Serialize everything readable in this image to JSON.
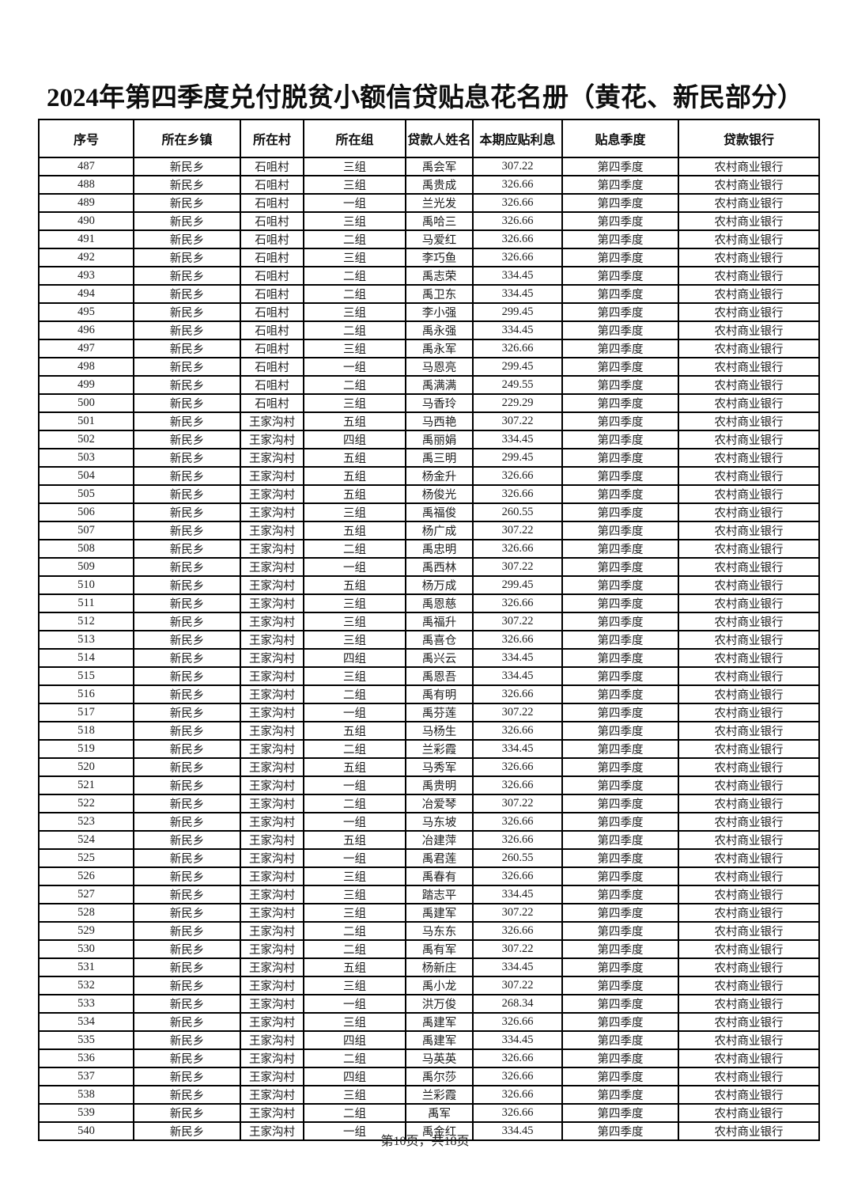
{
  "title": "2024年第四季度兑付脱贫小额信贷贴息花名册（黄花、新民部分）",
  "table": {
    "columns": [
      "序号",
      "所在乡镇",
      "所在村",
      "所在组",
      "贷款人姓名",
      "本期应贴利息",
      "贴息季度",
      "贷款银行"
    ],
    "rows": [
      [
        "487",
        "新民乡",
        "石咀村",
        "三组",
        "禹会军",
        "307.22",
        "第四季度",
        "农村商业银行"
      ],
      [
        "488",
        "新民乡",
        "石咀村",
        "三组",
        "禹贵成",
        "326.66",
        "第四季度",
        "农村商业银行"
      ],
      [
        "489",
        "新民乡",
        "石咀村",
        "一组",
        "兰光发",
        "326.66",
        "第四季度",
        "农村商业银行"
      ],
      [
        "490",
        "新民乡",
        "石咀村",
        "三组",
        "禹哈三",
        "326.66",
        "第四季度",
        "农村商业银行"
      ],
      [
        "491",
        "新民乡",
        "石咀村",
        "二组",
        "马爱红",
        "326.66",
        "第四季度",
        "农村商业银行"
      ],
      [
        "492",
        "新民乡",
        "石咀村",
        "三组",
        "李巧鱼",
        "326.66",
        "第四季度",
        "农村商业银行"
      ],
      [
        "493",
        "新民乡",
        "石咀村",
        "二组",
        "禹志荣",
        "334.45",
        "第四季度",
        "农村商业银行"
      ],
      [
        "494",
        "新民乡",
        "石咀村",
        "二组",
        "禹卫东",
        "334.45",
        "第四季度",
        "农村商业银行"
      ],
      [
        "495",
        "新民乡",
        "石咀村",
        "三组",
        "李小强",
        "299.45",
        "第四季度",
        "农村商业银行"
      ],
      [
        "496",
        "新民乡",
        "石咀村",
        "二组",
        "禹永强",
        "334.45",
        "第四季度",
        "农村商业银行"
      ],
      [
        "497",
        "新民乡",
        "石咀村",
        "三组",
        "禹永军",
        "326.66",
        "第四季度",
        "农村商业银行"
      ],
      [
        "498",
        "新民乡",
        "石咀村",
        "一组",
        "马恩亮",
        "299.45",
        "第四季度",
        "农村商业银行"
      ],
      [
        "499",
        "新民乡",
        "石咀村",
        "二组",
        "禹满满",
        "249.55",
        "第四季度",
        "农村商业银行"
      ],
      [
        "500",
        "新民乡",
        "石咀村",
        "三组",
        "马香玲",
        "229.29",
        "第四季度",
        "农村商业银行"
      ],
      [
        "501",
        "新民乡",
        "王家沟村",
        "五组",
        "马西艳",
        "307.22",
        "第四季度",
        "农村商业银行"
      ],
      [
        "502",
        "新民乡",
        "王家沟村",
        "四组",
        "禹丽娟",
        "334.45",
        "第四季度",
        "农村商业银行"
      ],
      [
        "503",
        "新民乡",
        "王家沟村",
        "五组",
        "禹三明",
        "299.45",
        "第四季度",
        "农村商业银行"
      ],
      [
        "504",
        "新民乡",
        "王家沟村",
        "五组",
        "杨金升",
        "326.66",
        "第四季度",
        "农村商业银行"
      ],
      [
        "505",
        "新民乡",
        "王家沟村",
        "五组",
        "杨俊光",
        "326.66",
        "第四季度",
        "农村商业银行"
      ],
      [
        "506",
        "新民乡",
        "王家沟村",
        "三组",
        "禹福俊",
        "260.55",
        "第四季度",
        "农村商业银行"
      ],
      [
        "507",
        "新民乡",
        "王家沟村",
        "五组",
        "杨广成",
        "307.22",
        "第四季度",
        "农村商业银行"
      ],
      [
        "508",
        "新民乡",
        "王家沟村",
        "二组",
        "禹忠明",
        "326.66",
        "第四季度",
        "农村商业银行"
      ],
      [
        "509",
        "新民乡",
        "王家沟村",
        "一组",
        "禹西林",
        "307.22",
        "第四季度",
        "农村商业银行"
      ],
      [
        "510",
        "新民乡",
        "王家沟村",
        "五组",
        "杨万成",
        "299.45",
        "第四季度",
        "农村商业银行"
      ],
      [
        "511",
        "新民乡",
        "王家沟村",
        "三组",
        "禹恩慈",
        "326.66",
        "第四季度",
        "农村商业银行"
      ],
      [
        "512",
        "新民乡",
        "王家沟村",
        "三组",
        "禹福升",
        "307.22",
        "第四季度",
        "农村商业银行"
      ],
      [
        "513",
        "新民乡",
        "王家沟村",
        "三组",
        "禹喜仓",
        "326.66",
        "第四季度",
        "农村商业银行"
      ],
      [
        "514",
        "新民乡",
        "王家沟村",
        "四组",
        "禹兴云",
        "334.45",
        "第四季度",
        "农村商业银行"
      ],
      [
        "515",
        "新民乡",
        "王家沟村",
        "三组",
        "禹恩吾",
        "334.45",
        "第四季度",
        "农村商业银行"
      ],
      [
        "516",
        "新民乡",
        "王家沟村",
        "二组",
        "禹有明",
        "326.66",
        "第四季度",
        "农村商业银行"
      ],
      [
        "517",
        "新民乡",
        "王家沟村",
        "一组",
        "禹芬莲",
        "307.22",
        "第四季度",
        "农村商业银行"
      ],
      [
        "518",
        "新民乡",
        "王家沟村",
        "五组",
        "马杨生",
        "326.66",
        "第四季度",
        "农村商业银行"
      ],
      [
        "519",
        "新民乡",
        "王家沟村",
        "二组",
        "兰彩霞",
        "334.45",
        "第四季度",
        "农村商业银行"
      ],
      [
        "520",
        "新民乡",
        "王家沟村",
        "五组",
        "马秀军",
        "326.66",
        "第四季度",
        "农村商业银行"
      ],
      [
        "521",
        "新民乡",
        "王家沟村",
        "一组",
        "禹贵明",
        "326.66",
        "第四季度",
        "农村商业银行"
      ],
      [
        "522",
        "新民乡",
        "王家沟村",
        "二组",
        "冶爱琴",
        "307.22",
        "第四季度",
        "农村商业银行"
      ],
      [
        "523",
        "新民乡",
        "王家沟村",
        "一组",
        "马东坡",
        "326.66",
        "第四季度",
        "农村商业银行"
      ],
      [
        "524",
        "新民乡",
        "王家沟村",
        "五组",
        "冶建萍",
        "326.66",
        "第四季度",
        "农村商业银行"
      ],
      [
        "525",
        "新民乡",
        "王家沟村",
        "一组",
        "禹君莲",
        "260.55",
        "第四季度",
        "农村商业银行"
      ],
      [
        "526",
        "新民乡",
        "王家沟村",
        "三组",
        "禹春有",
        "326.66",
        "第四季度",
        "农村商业银行"
      ],
      [
        "527",
        "新民乡",
        "王家沟村",
        "三组",
        "踏志平",
        "334.45",
        "第四季度",
        "农村商业银行"
      ],
      [
        "528",
        "新民乡",
        "王家沟村",
        "三组",
        "禹建军",
        "307.22",
        "第四季度",
        "农村商业银行"
      ],
      [
        "529",
        "新民乡",
        "王家沟村",
        "二组",
        "马东东",
        "326.66",
        "第四季度",
        "农村商业银行"
      ],
      [
        "530",
        "新民乡",
        "王家沟村",
        "二组",
        "禹有军",
        "307.22",
        "第四季度",
        "农村商业银行"
      ],
      [
        "531",
        "新民乡",
        "王家沟村",
        "五组",
        "杨新庄",
        "334.45",
        "第四季度",
        "农村商业银行"
      ],
      [
        "532",
        "新民乡",
        "王家沟村",
        "三组",
        "禹小龙",
        "307.22",
        "第四季度",
        "农村商业银行"
      ],
      [
        "533",
        "新民乡",
        "王家沟村",
        "一组",
        "洪万俊",
        "268.34",
        "第四季度",
        "农村商业银行"
      ],
      [
        "534",
        "新民乡",
        "王家沟村",
        "三组",
        "禹建军",
        "326.66",
        "第四季度",
        "农村商业银行"
      ],
      [
        "535",
        "新民乡",
        "王家沟村",
        "四组",
        "禹建军",
        "334.45",
        "第四季度",
        "农村商业银行"
      ],
      [
        "536",
        "新民乡",
        "王家沟村",
        "二组",
        "马英英",
        "326.66",
        "第四季度",
        "农村商业银行"
      ],
      [
        "537",
        "新民乡",
        "王家沟村",
        "四组",
        "禹尔莎",
        "326.66",
        "第四季度",
        "农村商业银行"
      ],
      [
        "538",
        "新民乡",
        "王家沟村",
        "三组",
        "兰彩霞",
        "326.66",
        "第四季度",
        "农村商业银行"
      ],
      [
        "539",
        "新民乡",
        "王家沟村",
        "二组",
        "禹军",
        "326.66",
        "第四季度",
        "农村商业银行"
      ],
      [
        "540",
        "新民乡",
        "王家沟村",
        "一组",
        "禹金红",
        "334.45",
        "第四季度",
        "农村商业银行"
      ]
    ]
  },
  "footer": {
    "page_label": "第10页，共18页"
  },
  "colors": {
    "background": "#ffffff",
    "text": "#1c1c1c",
    "border": "#000000"
  }
}
